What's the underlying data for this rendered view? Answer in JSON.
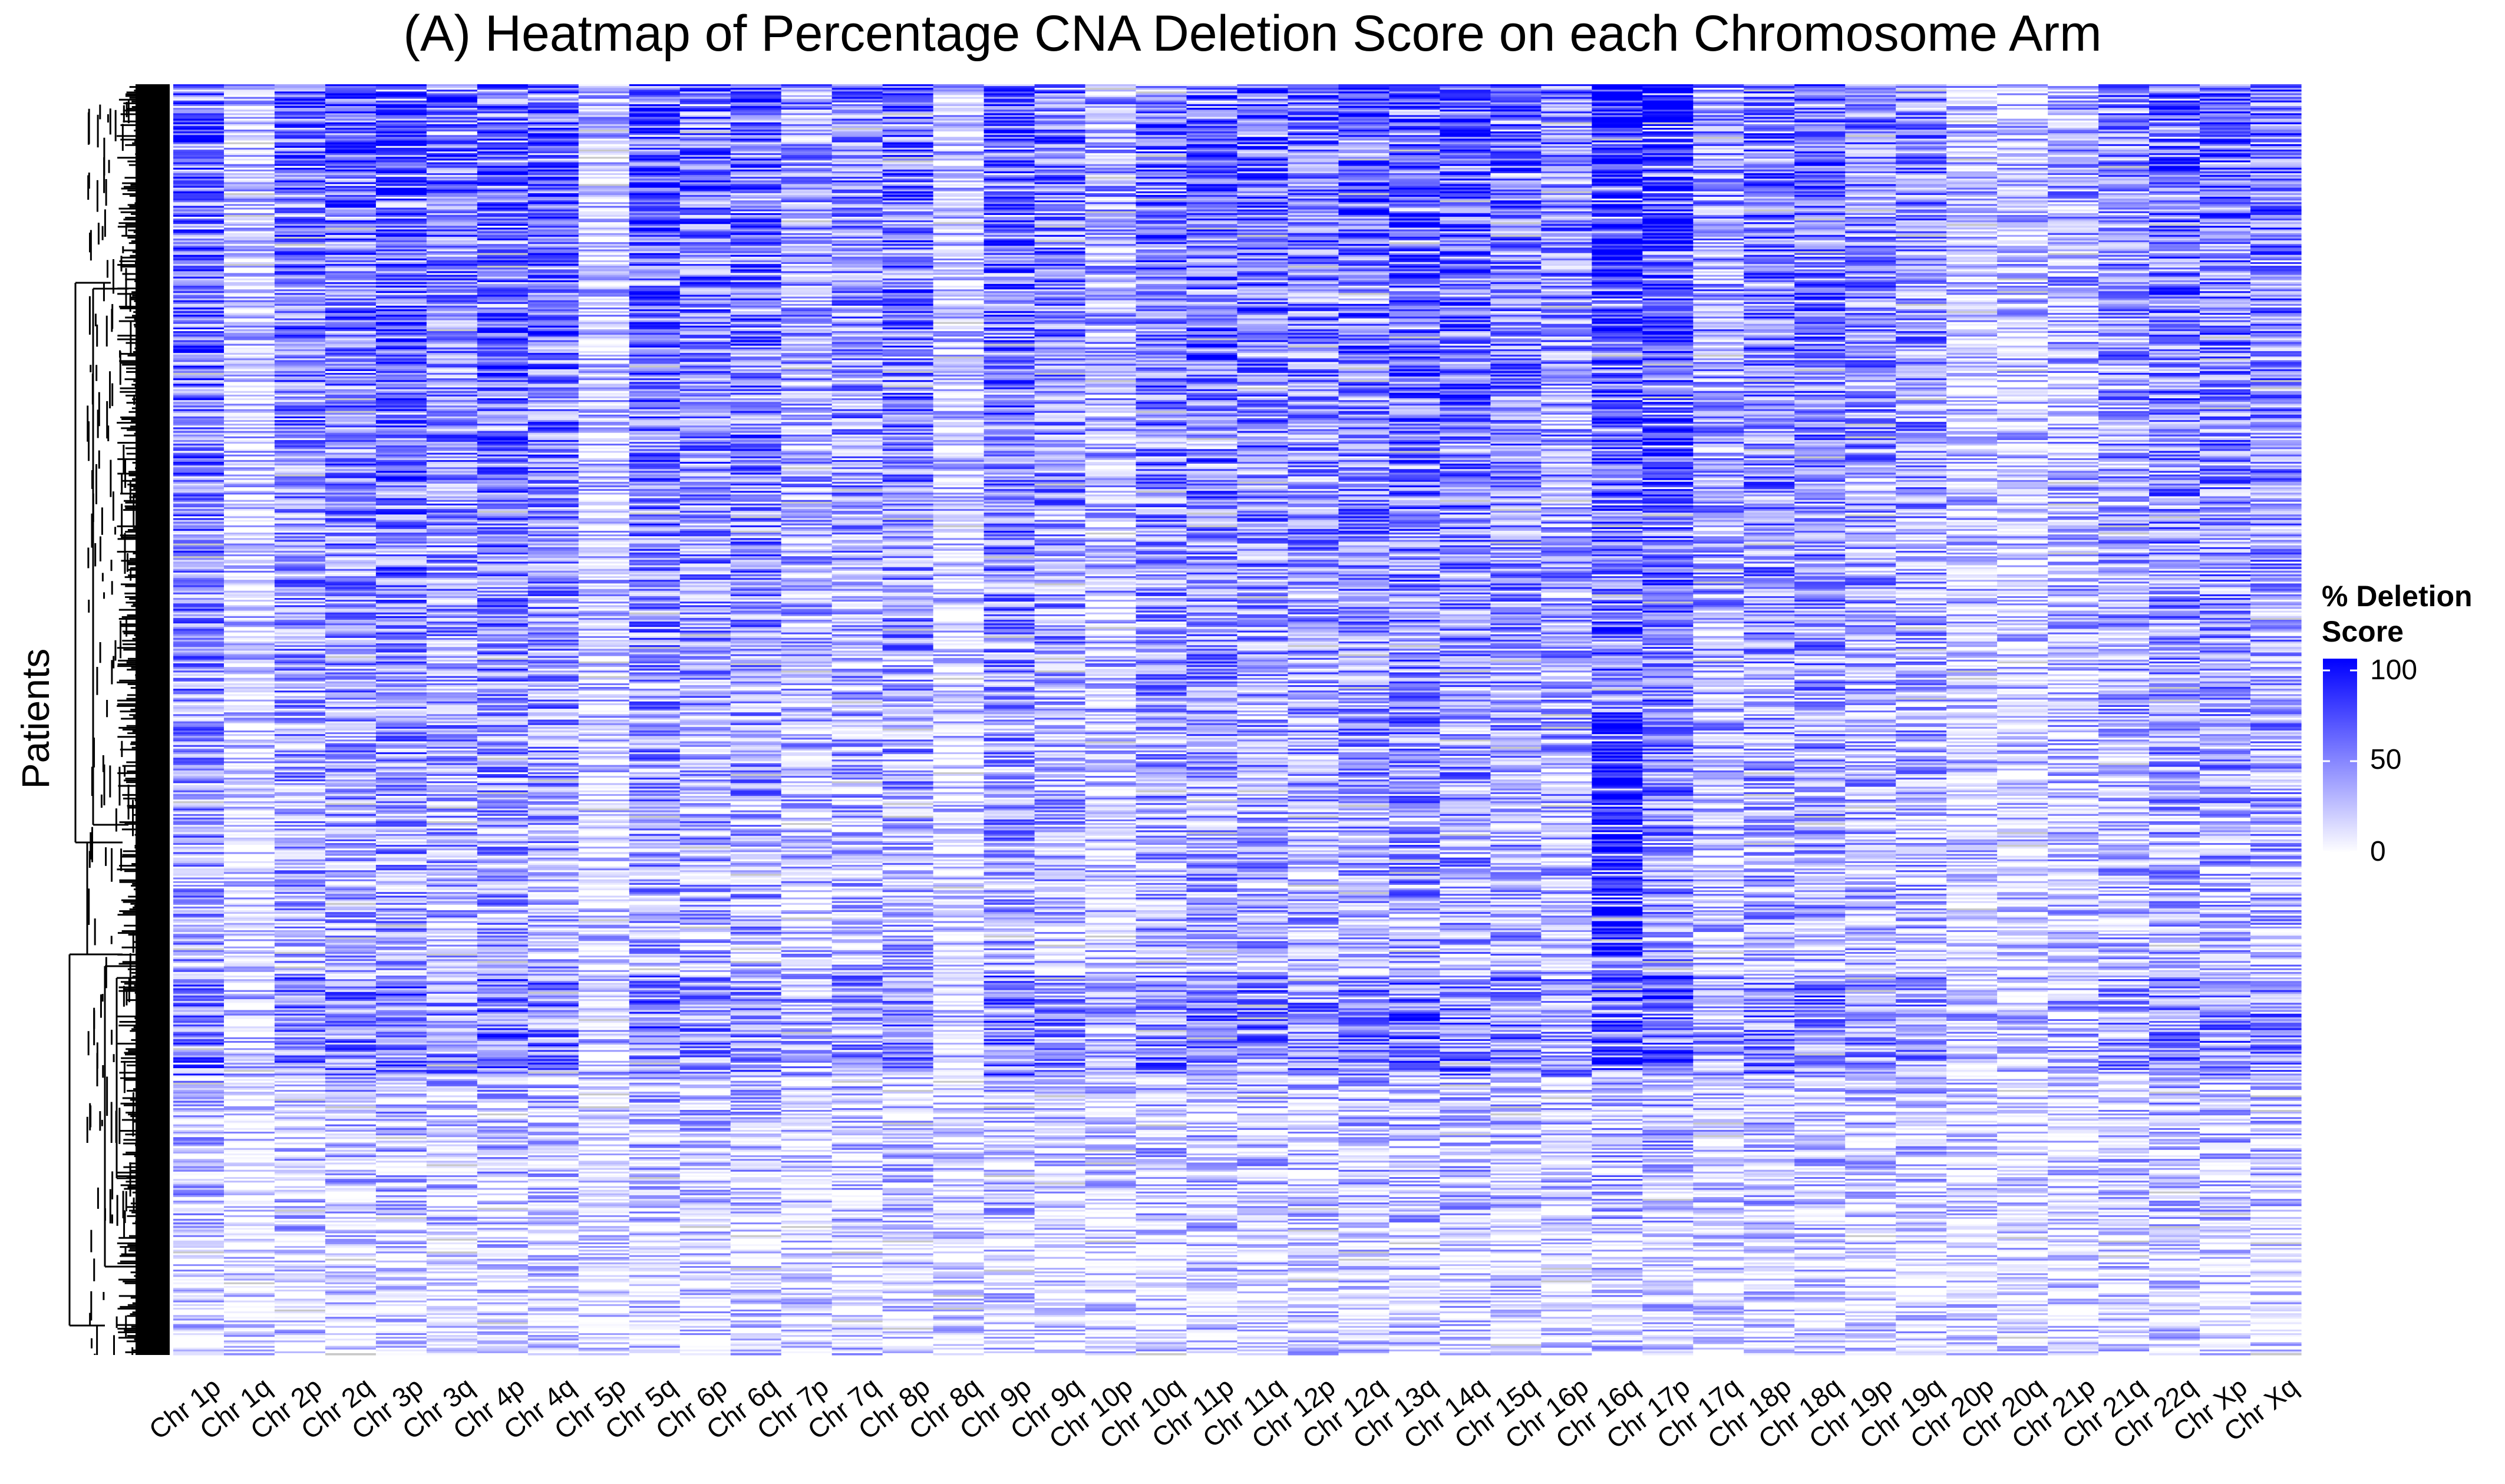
{
  "chart_data": {
    "type": "heatmap",
    "title": "(A) Heatmap of Percentage CNA Deletion Score on each Chromosome Arm",
    "ylabel": "Patients",
    "xlabel": "",
    "columns": [
      "Chr 1p",
      "Chr 1q",
      "Chr 2p",
      "Chr 2q",
      "Chr 3p",
      "Chr 3q",
      "Chr 4p",
      "Chr 4q",
      "Chr 5p",
      "Chr 5q",
      "Chr 6p",
      "Chr 6q",
      "Chr 7p",
      "Chr 7q",
      "Chr 8p",
      "Chr 8q",
      "Chr 9p",
      "Chr 9q",
      "Chr 10p",
      "Chr 10q",
      "Chr 11p",
      "Chr 11q",
      "Chr 12p",
      "Chr 12q",
      "Chr 13q",
      "Chr 14q",
      "Chr 15q",
      "Chr 16p",
      "Chr 16q",
      "Chr 17p",
      "Chr 17q",
      "Chr 18p",
      "Chr 18q",
      "Chr 19p",
      "Chr 19q",
      "Chr 20p",
      "Chr 20q",
      "Chr 21p",
      "Chr 21q",
      "Chr 22q",
      "Chr Xp",
      "Chr Xq"
    ],
    "column_mean_deletion_score": [
      55,
      12,
      48,
      50,
      60,
      45,
      58,
      52,
      15,
      55,
      48,
      52,
      30,
      40,
      50,
      12,
      55,
      45,
      25,
      50,
      55,
      50,
      45,
      55,
      62,
      55,
      50,
      40,
      70,
      70,
      35,
      48,
      50,
      40,
      38,
      18,
      15,
      25,
      38,
      50,
      48,
      45
    ],
    "row_count_estimate": 700,
    "value_range": [
      0,
      100
    ],
    "colorscale": {
      "low": "#ffffff",
      "high": "#0000ff",
      "missing": "#c8c8c8"
    },
    "dendrogram": "rows",
    "legend": {
      "title_line1": "% Deletion",
      "title_line2": "Score",
      "ticks": [
        "100",
        "50",
        "0"
      ],
      "placement": "right"
    }
  }
}
